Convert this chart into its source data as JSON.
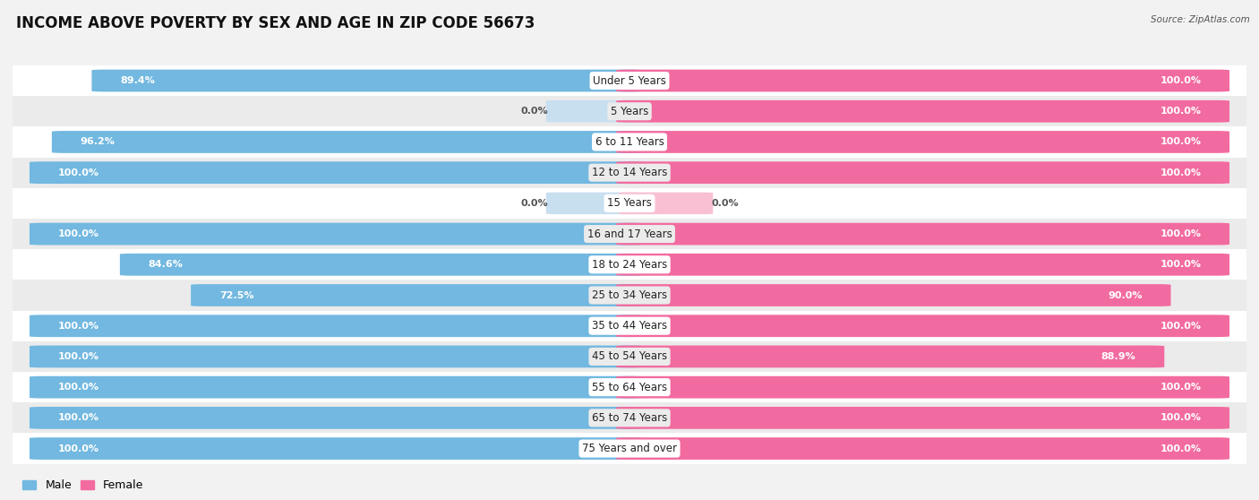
{
  "title": "INCOME ABOVE POVERTY BY SEX AND AGE IN ZIP CODE 56673",
  "source": "Source: ZipAtlas.com",
  "categories": [
    "Under 5 Years",
    "5 Years",
    "6 to 11 Years",
    "12 to 14 Years",
    "15 Years",
    "16 and 17 Years",
    "18 to 24 Years",
    "25 to 34 Years",
    "35 to 44 Years",
    "45 to 54 Years",
    "55 to 64 Years",
    "65 to 74 Years",
    "75 Years and over"
  ],
  "male_values": [
    89.4,
    0.0,
    96.2,
    100.0,
    0.0,
    100.0,
    84.6,
    72.5,
    100.0,
    100.0,
    100.0,
    100.0,
    100.0
  ],
  "female_values": [
    100.0,
    100.0,
    100.0,
    100.0,
    0.0,
    100.0,
    100.0,
    90.0,
    100.0,
    88.9,
    100.0,
    100.0,
    100.0
  ],
  "male_color": "#72b8e0",
  "female_color": "#f26ba0",
  "male_color_light": "#c8dff0",
  "female_color_light": "#f9c0d4",
  "row_colors": [
    "#ffffff",
    "#ebebeb"
  ],
  "title_fontsize": 12,
  "label_fontsize": 8.5,
  "value_fontsize": 8
}
